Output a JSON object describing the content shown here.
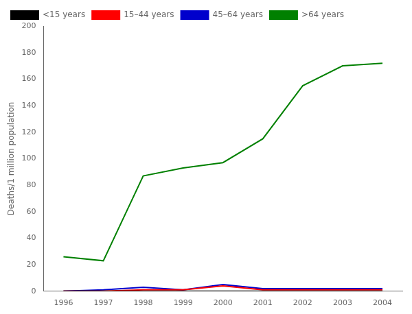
{
  "chart_data": {
    "type": "line",
    "x": [
      1996,
      1997,
      1998,
      1999,
      2000,
      2001,
      2002,
      2003,
      2004
    ],
    "series": [
      {
        "name": "<15 years",
        "color": "#000000",
        "values": [
          0,
          0,
          0,
          0,
          0,
          0,
          0,
          0,
          0
        ]
      },
      {
        "name": "15–44 years",
        "color": "#ff0000",
        "values": [
          0,
          0,
          1,
          1,
          4,
          1,
          1,
          1,
          1
        ]
      },
      {
        "name": "45–64 years",
        "color": "#0000cc",
        "values": [
          0,
          1,
          3,
          1,
          5,
          2,
          2,
          2,
          2
        ]
      },
      {
        "name": ">64 years",
        "color": "#008000",
        "values": [
          26,
          23,
          87,
          93,
          97,
          115,
          155,
          170,
          172
        ]
      }
    ],
    "ylabel": "Deaths/1 million population",
    "xlim": [
      1995.5,
      2004.5
    ],
    "xticks": [
      1996,
      1997,
      1998,
      1999,
      2000,
      2001,
      2002,
      2003,
      2004
    ],
    "ylim": [
      0,
      200
    ],
    "yticks": [
      0,
      20,
      40,
      60,
      80,
      100,
      120,
      140,
      160,
      180,
      200
    ],
    "grid": false,
    "legend": "upper left"
  }
}
